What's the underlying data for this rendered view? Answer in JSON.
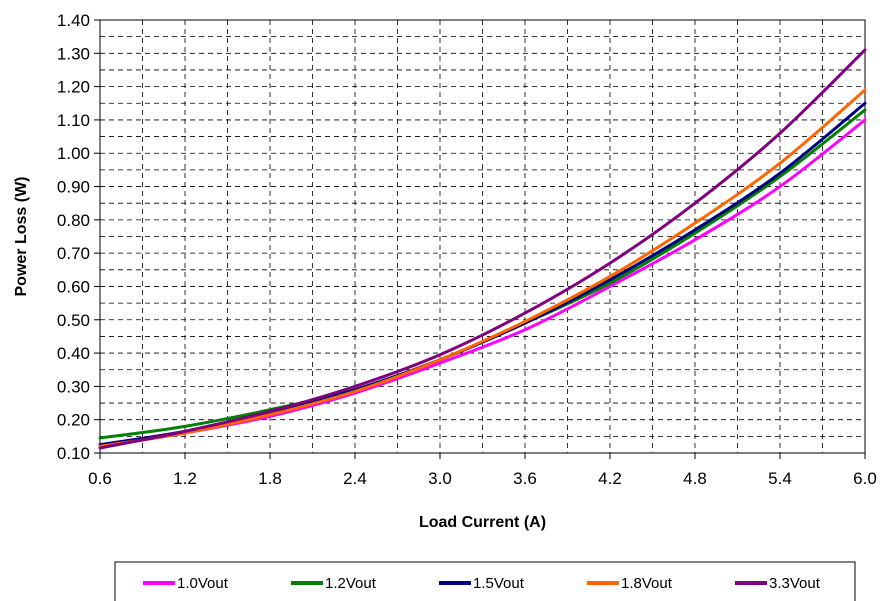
{
  "chart_data": {
    "type": "line",
    "title": "",
    "xlabel": "Load Current (A)",
    "ylabel": "Power Loss (W)",
    "xlim": [
      0.6,
      6.0
    ],
    "ylim": [
      0.1,
      1.4
    ],
    "x_ticks": [
      "0.6",
      "1.2",
      "1.8",
      "2.4",
      "3.0",
      "3.6",
      "4.2",
      "4.8",
      "5.4",
      "6.0"
    ],
    "y_ticks": [
      "0.10",
      "0.20",
      "0.30",
      "0.40",
      "0.50",
      "0.60",
      "0.70",
      "0.80",
      "0.90",
      "1.00",
      "1.10",
      "1.20",
      "1.30",
      "1.40"
    ],
    "grid": true,
    "legend_position": "bottom",
    "x": [
      0.6,
      1.2,
      1.8,
      2.4,
      3.0,
      3.6,
      4.2,
      4.8,
      5.4,
      6.0
    ],
    "series": [
      {
        "name": "1.0Vout",
        "color": "#ff00ff",
        "values": [
          0.12,
          0.16,
          0.21,
          0.28,
          0.37,
          0.47,
          0.6,
          0.74,
          0.9,
          1.1
        ]
      },
      {
        "name": "1.2Vout",
        "color": "#008000",
        "values": [
          0.145,
          0.18,
          0.23,
          0.29,
          0.38,
          0.49,
          0.61,
          0.76,
          0.93,
          1.13
        ]
      },
      {
        "name": "1.5Vout",
        "color": "#000080",
        "values": [
          0.125,
          0.165,
          0.22,
          0.29,
          0.38,
          0.49,
          0.62,
          0.77,
          0.94,
          1.15
        ]
      },
      {
        "name": "1.8Vout",
        "color": "#ff6600",
        "values": [
          0.12,
          0.16,
          0.215,
          0.285,
          0.38,
          0.495,
          0.63,
          0.79,
          0.97,
          1.19
        ]
      },
      {
        "name": "3.3Vout",
        "color": "#800080",
        "values": [
          0.115,
          0.165,
          0.225,
          0.3,
          0.395,
          0.52,
          0.67,
          0.85,
          1.06,
          1.31
        ]
      }
    ]
  }
}
